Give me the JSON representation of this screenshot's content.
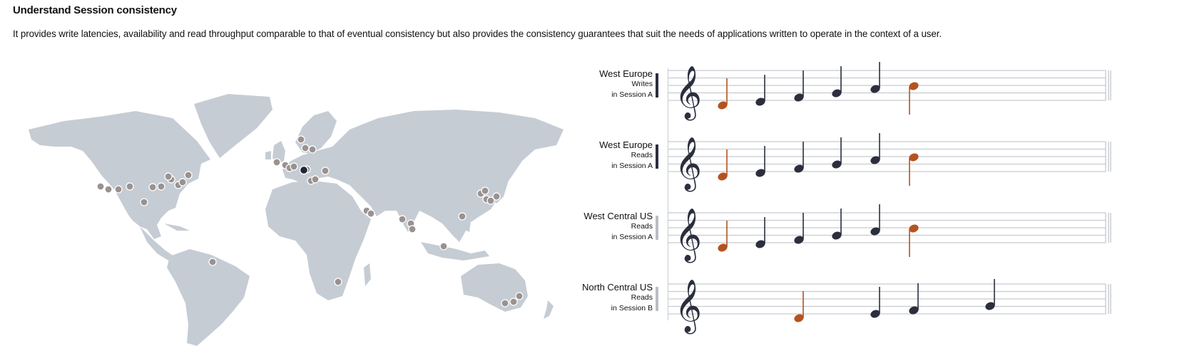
{
  "header": {
    "title": "Understand Session consistency",
    "description": "It provides write latencies, availability and read throughput comparable to that of eventual consistency but also provides the consistency guarantees that suit the needs of applications written to operate in the context of a user."
  },
  "colors": {
    "land": "#c5ccd4",
    "region_dot": "#9a9290",
    "region_dot_active": "#232634",
    "note_dark": "#2b2e3d",
    "note_accent": "#b4531f",
    "staff_line": "#c7cbd0",
    "bar_active": "#2b2e3d",
    "bar_inactive": "#b9bdc3"
  },
  "lanes": [
    {
      "region": "West Europe",
      "operation": "Writes",
      "session": "in Session A",
      "active": true
    },
    {
      "region": "West Europe",
      "operation": "Reads",
      "session": "in Session A",
      "active": true
    },
    {
      "region": "West Central US",
      "operation": "Reads",
      "session": "in Session A",
      "active": false
    },
    {
      "region": "North Central US",
      "operation": "Reads",
      "session": "in Session B",
      "active": false
    }
  ]
}
